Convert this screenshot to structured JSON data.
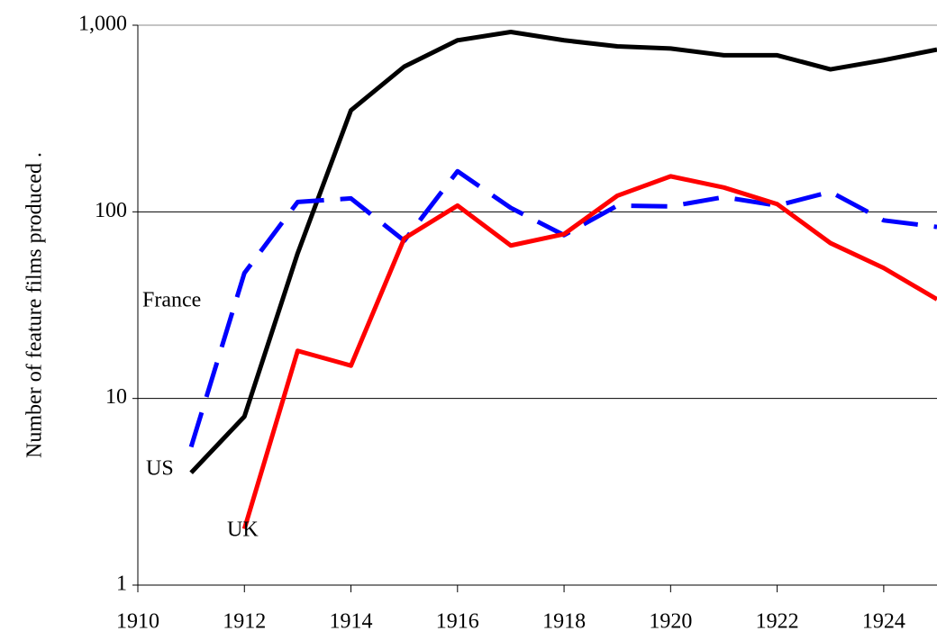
{
  "chart_data": {
    "type": "line",
    "y_label": "Number of feature films produced .",
    "x": [
      1911,
      1912,
      1913,
      1914,
      1915,
      1916,
      1917,
      1918,
      1919,
      1920,
      1921,
      1922,
      1923,
      1924,
      1925
    ],
    "series": [
      {
        "name": "US",
        "color": "#000000",
        "dash": false,
        "values": [
          4,
          8,
          60,
          350,
          600,
          830,
          920,
          830,
          770,
          750,
          690,
          690,
          580,
          650,
          740
        ]
      },
      {
        "name": "France",
        "color": "#0000ff",
        "dash": true,
        "values": [
          5.5,
          47,
          113,
          118,
          70,
          165,
          105,
          75,
          108,
          107,
          120,
          108,
          128,
          90,
          83
        ]
      },
      {
        "name": "UK",
        "color": "#ff0000",
        "dash": false,
        "values": [
          null,
          2,
          18,
          15,
          72,
          108,
          66,
          76,
          122,
          155,
          135,
          110,
          68,
          50,
          34
        ]
      }
    ],
    "xlim": [
      1910,
      1925
    ],
    "xticks": [
      1910,
      1912,
      1914,
      1916,
      1918,
      1920,
      1922,
      1924
    ],
    "ylim": [
      1,
      1000
    ],
    "yticks": [
      {
        "value": 1000,
        "label": "1,000"
      },
      100,
      10,
      1
    ],
    "log_y": true,
    "grid": true
  }
}
